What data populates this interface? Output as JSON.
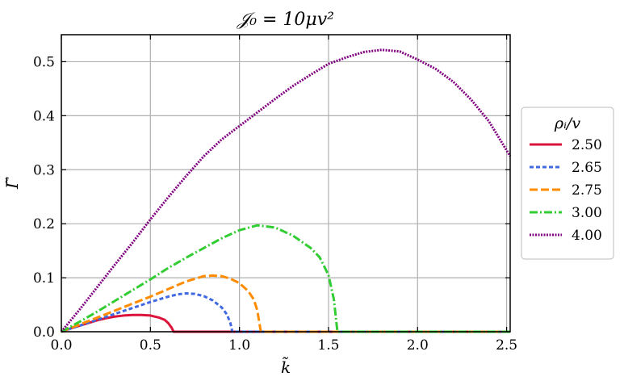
{
  "chart_data": {
    "type": "line",
    "title": "𝒥₀ = 10μv²",
    "xlabel": "k̃",
    "ylabel": "Γ̃",
    "xlim": [
      0.0,
      2.52
    ],
    "ylim": [
      0.0,
      0.55
    ],
    "xticks": [
      "0.0",
      "0.5",
      "1.0",
      "1.5",
      "2.0",
      "2.5"
    ],
    "yticks": [
      "0.0",
      "0.1",
      "0.2",
      "0.3",
      "0.4",
      "0.5"
    ],
    "grid": true,
    "legend": {
      "title": "ρᵢ/v",
      "placement": "right outside"
    },
    "series": [
      {
        "name": "2.50",
        "color": "#dc143c",
        "dash": "solid",
        "x": [
          0.0,
          0.05,
          0.1,
          0.15,
          0.2,
          0.25,
          0.3,
          0.35,
          0.4,
          0.45,
          0.5,
          0.55,
          0.58,
          0.6,
          0.62,
          0.63,
          2.52
        ],
        "y": [
          0.0,
          0.006,
          0.011,
          0.016,
          0.021,
          0.025,
          0.028,
          0.03,
          0.031,
          0.031,
          0.03,
          0.026,
          0.022,
          0.016,
          0.007,
          0.0,
          0.0
        ]
      },
      {
        "name": "2.65",
        "color": "#4169e1",
        "dash": "dash",
        "x": [
          0.0,
          0.1,
          0.2,
          0.3,
          0.4,
          0.5,
          0.6,
          0.65,
          0.7,
          0.75,
          0.8,
          0.85,
          0.9,
          0.93,
          0.95,
          0.96,
          2.52
        ],
        "y": [
          0.0,
          0.011,
          0.022,
          0.033,
          0.044,
          0.055,
          0.065,
          0.069,
          0.071,
          0.07,
          0.066,
          0.058,
          0.045,
          0.032,
          0.015,
          0.0,
          0.0
        ]
      },
      {
        "name": "2.75",
        "color": "#ff8c00",
        "dash": "longdash",
        "x": [
          0.0,
          0.1,
          0.2,
          0.3,
          0.4,
          0.5,
          0.6,
          0.7,
          0.8,
          0.85,
          0.9,
          0.95,
          1.0,
          1.05,
          1.08,
          1.1,
          1.12,
          2.52
        ],
        "y": [
          0.0,
          0.013,
          0.026,
          0.039,
          0.052,
          0.065,
          0.079,
          0.093,
          0.103,
          0.104,
          0.103,
          0.098,
          0.09,
          0.075,
          0.06,
          0.04,
          0.0,
          0.0
        ]
      },
      {
        "name": "3.00",
        "color": "#32cd32",
        "dash": "dashdot",
        "x": [
          0.0,
          0.1,
          0.2,
          0.3,
          0.4,
          0.5,
          0.6,
          0.7,
          0.8,
          0.9,
          1.0,
          1.1,
          1.2,
          1.3,
          1.4,
          1.45,
          1.5,
          1.53,
          1.55,
          2.52
        ],
        "y": [
          0.0,
          0.018,
          0.037,
          0.057,
          0.077,
          0.097,
          0.118,
          0.137,
          0.155,
          0.173,
          0.188,
          0.197,
          0.193,
          0.178,
          0.155,
          0.138,
          0.105,
          0.06,
          0.0,
          0.0
        ]
      },
      {
        "name": "4.00",
        "color": "#800080",
        "dash": "dotted",
        "x": [
          0.0,
          0.1,
          0.2,
          0.3,
          0.4,
          0.5,
          0.6,
          0.7,
          0.8,
          0.9,
          1.0,
          1.1,
          1.2,
          1.3,
          1.4,
          1.5,
          1.6,
          1.7,
          1.8,
          1.9,
          2.0,
          2.1,
          2.2,
          2.3,
          2.4,
          2.52
        ],
        "y": [
          0.0,
          0.04,
          0.082,
          0.124,
          0.165,
          0.208,
          0.249,
          0.288,
          0.325,
          0.356,
          0.381,
          0.406,
          0.431,
          0.455,
          0.476,
          0.496,
          0.508,
          0.518,
          0.522,
          0.519,
          0.504,
          0.487,
          0.463,
          0.43,
          0.39,
          0.325
        ]
      }
    ]
  }
}
